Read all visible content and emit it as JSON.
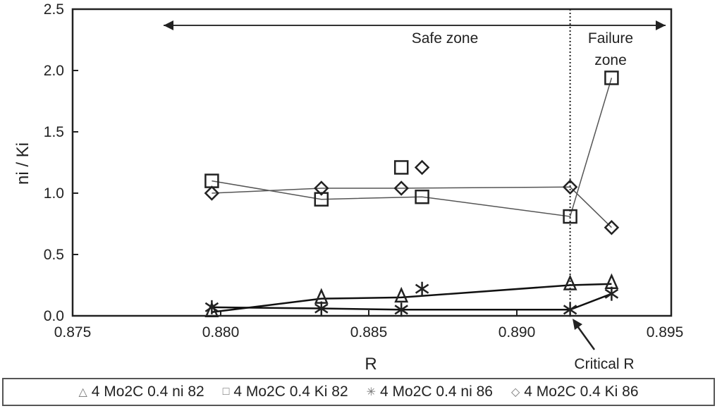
{
  "chart_data": {
    "type": "scatter",
    "title": "",
    "xlabel": "R",
    "ylabel": "ni / Ki",
    "xlim": [
      0.875,
      0.895
    ],
    "ylim": [
      0.0,
      2.5
    ],
    "xticks": [
      "0.875",
      "0.880",
      "0.885",
      "0.890",
      "0.895"
    ],
    "xtick_values": [
      0.875,
      0.88,
      0.885,
      0.89,
      0.895
    ],
    "yticks": [
      "0.0",
      "0.5",
      "1.0",
      "1.5",
      "2.0",
      "2.5"
    ],
    "ytick_values": [
      0.0,
      0.5,
      1.0,
      1.5,
      2.0,
      2.5
    ],
    "grid": false,
    "legend_position": "bottom",
    "series": [
      {
        "name": "4 Mo2C 0.4 ni 82",
        "marker": "triangle",
        "symbol": "△",
        "line_weight": "bold",
        "x": [
          0.8797,
          0.8834,
          0.8861,
          0.8918,
          0.8932
        ],
        "y": [
          0.03,
          0.14,
          0.15,
          0.25,
          0.26
        ]
      },
      {
        "name": "4 Mo2C 0.4 Ki 82",
        "marker": "square",
        "symbol": "□",
        "line_weight": "thin",
        "x": [
          0.8797,
          0.8834,
          0.8861,
          0.8868,
          0.8918,
          0.8932
        ],
        "y": [
          1.1,
          0.95,
          1.21,
          0.97,
          0.81,
          1.94
        ],
        "line_skip": [
          2
        ]
      },
      {
        "name": "4 Mo2C 0.4 ni 86",
        "marker": "asterisk",
        "symbol": "✳",
        "line_weight": "bold",
        "x": [
          0.8797,
          0.8834,
          0.8861,
          0.8868,
          0.8918,
          0.8932
        ],
        "y": [
          0.07,
          0.06,
          0.05,
          0.22,
          0.05,
          0.18
        ],
        "line_skip": [
          3
        ]
      },
      {
        "name": "4 Mo2C 0.4 Ki 86",
        "marker": "diamond",
        "symbol": "◇",
        "line_weight": "thin",
        "x": [
          0.8797,
          0.8834,
          0.8861,
          0.8868,
          0.8918,
          0.8932
        ],
        "y": [
          1.0,
          1.04,
          1.04,
          1.21,
          1.05,
          0.72
        ],
        "line_skip": [
          3
        ]
      }
    ],
    "critical_r": 0.8918,
    "annotations": {
      "safe_zone": "Safe zone",
      "failure_zone_line1": "Failure",
      "failure_zone_line2": "zone",
      "critical_r_label": "Critical R"
    }
  }
}
